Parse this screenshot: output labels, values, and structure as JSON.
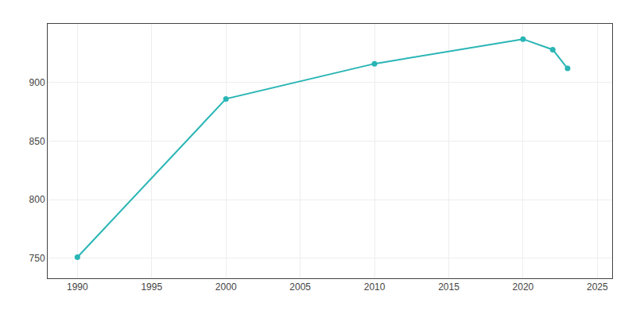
{
  "chart_data": {
    "type": "line",
    "x": [
      1990,
      2000,
      2010,
      2020,
      2022,
      2023
    ],
    "values": [
      751,
      886,
      916,
      937,
      928,
      912
    ],
    "color": "#2ab5b5",
    "marker": "circle",
    "xlim": [
      1988,
      2026
    ],
    "ylim": [
      733,
      950
    ],
    "xticks": [
      1990,
      1995,
      2000,
      2005,
      2010,
      2015,
      2020,
      2025
    ],
    "yticks": [
      750,
      800,
      850,
      900
    ],
    "grid": true
  }
}
